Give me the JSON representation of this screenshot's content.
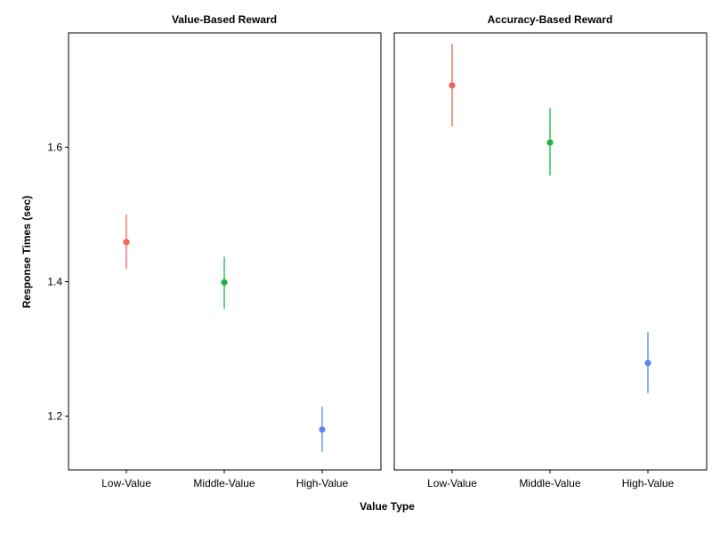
{
  "chart_data": {
    "type": "scatter",
    "xlabel": "Value Type",
    "ylabel": "Response Times (sec)",
    "categories": [
      "Low-Value",
      "Middle-Value",
      "High-Value"
    ],
    "colors": [
      "#F0625E",
      "#1DB33B",
      "#5B86F2"
    ],
    "ylim": [
      1.12,
      1.77
    ],
    "yticks": [
      1.2,
      1.4,
      1.6
    ],
    "ytick_labels": [
      "1.2",
      "1.4",
      "1.6"
    ],
    "grid": false,
    "legend": "none",
    "panels": [
      {
        "title": "Value-Based Reward",
        "values": [
          1.459,
          1.399,
          1.18
        ],
        "lower": [
          1.419,
          1.36,
          1.147
        ],
        "upper": [
          1.5,
          1.437,
          1.214
        ]
      },
      {
        "title": "Accuracy-Based Reward",
        "values": [
          1.692,
          1.607,
          1.279
        ],
        "lower": [
          1.631,
          1.558,
          1.234
        ],
        "upper": [
          1.754,
          1.658,
          1.325
        ]
      }
    ]
  }
}
